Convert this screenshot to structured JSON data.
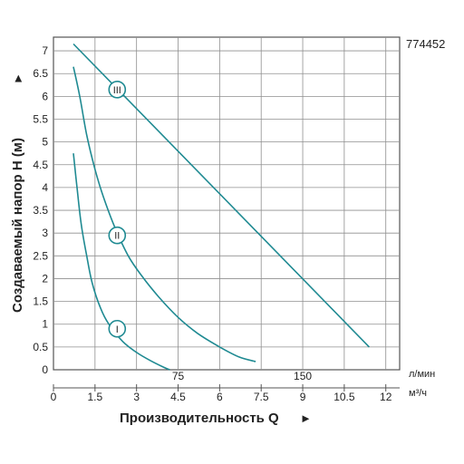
{
  "model_code": "774452",
  "chart_data": {
    "type": "line",
    "title": "",
    "xlabel": "Производительность Q",
    "ylabel": "Создаваемый напор H (м)",
    "xlim": [
      0,
      12.5
    ],
    "ylim": [
      0,
      7.3
    ],
    "x_ticks": [
      "0",
      "1.5",
      "3",
      "4.5",
      "6",
      "7.5",
      "9",
      "10.5",
      "12"
    ],
    "x_tick_values": [
      0,
      1.5,
      3,
      4.5,
      6,
      7.5,
      9,
      10.5,
      12
    ],
    "x_unit": "м³/ч",
    "x2_ticks": [
      "75",
      "150"
    ],
    "x2_tick_values": [
      4.5,
      9
    ],
    "x2_unit": "л/мин",
    "y_ticks": [
      "0",
      "0.5",
      "1",
      "1.5",
      "2",
      "2.5",
      "3",
      "3.5",
      "4",
      "4.5",
      "5",
      "5.5",
      "6",
      "6.5",
      "7"
    ],
    "y_tick_values": [
      0,
      0.5,
      1,
      1.5,
      2,
      2.5,
      3,
      3.5,
      4,
      4.5,
      5,
      5.5,
      6,
      6.5,
      7
    ],
    "grid": true,
    "line_color": "#1f8a92",
    "series": [
      {
        "name": "I",
        "label_at": [
          2.3,
          0.9
        ],
        "points": [
          [
            0.72,
            4.75
          ],
          [
            0.85,
            4.0
          ],
          [
            1.0,
            3.2
          ],
          [
            1.2,
            2.5
          ],
          [
            1.4,
            1.9
          ],
          [
            1.7,
            1.35
          ],
          [
            2.0,
            1.0
          ],
          [
            2.5,
            0.62
          ],
          [
            3.0,
            0.38
          ],
          [
            3.5,
            0.2
          ],
          [
            4.0,
            0.05
          ],
          [
            4.2,
            0.0
          ]
        ]
      },
      {
        "name": "II",
        "label_at": [
          2.3,
          2.95
        ],
        "points": [
          [
            0.72,
            6.65
          ],
          [
            0.95,
            6.0
          ],
          [
            1.2,
            5.15
          ],
          [
            1.5,
            4.4
          ],
          [
            1.8,
            3.8
          ],
          [
            2.2,
            3.15
          ],
          [
            2.7,
            2.5
          ],
          [
            3.2,
            2.05
          ],
          [
            3.8,
            1.6
          ],
          [
            4.5,
            1.15
          ],
          [
            5.2,
            0.8
          ],
          [
            6.0,
            0.5
          ],
          [
            6.7,
            0.28
          ],
          [
            7.3,
            0.18
          ]
        ]
      },
      {
        "name": "III",
        "label_at": [
          2.3,
          6.15
        ],
        "points": [
          [
            0.72,
            7.15
          ],
          [
            11.4,
            0.5
          ]
        ]
      }
    ]
  }
}
